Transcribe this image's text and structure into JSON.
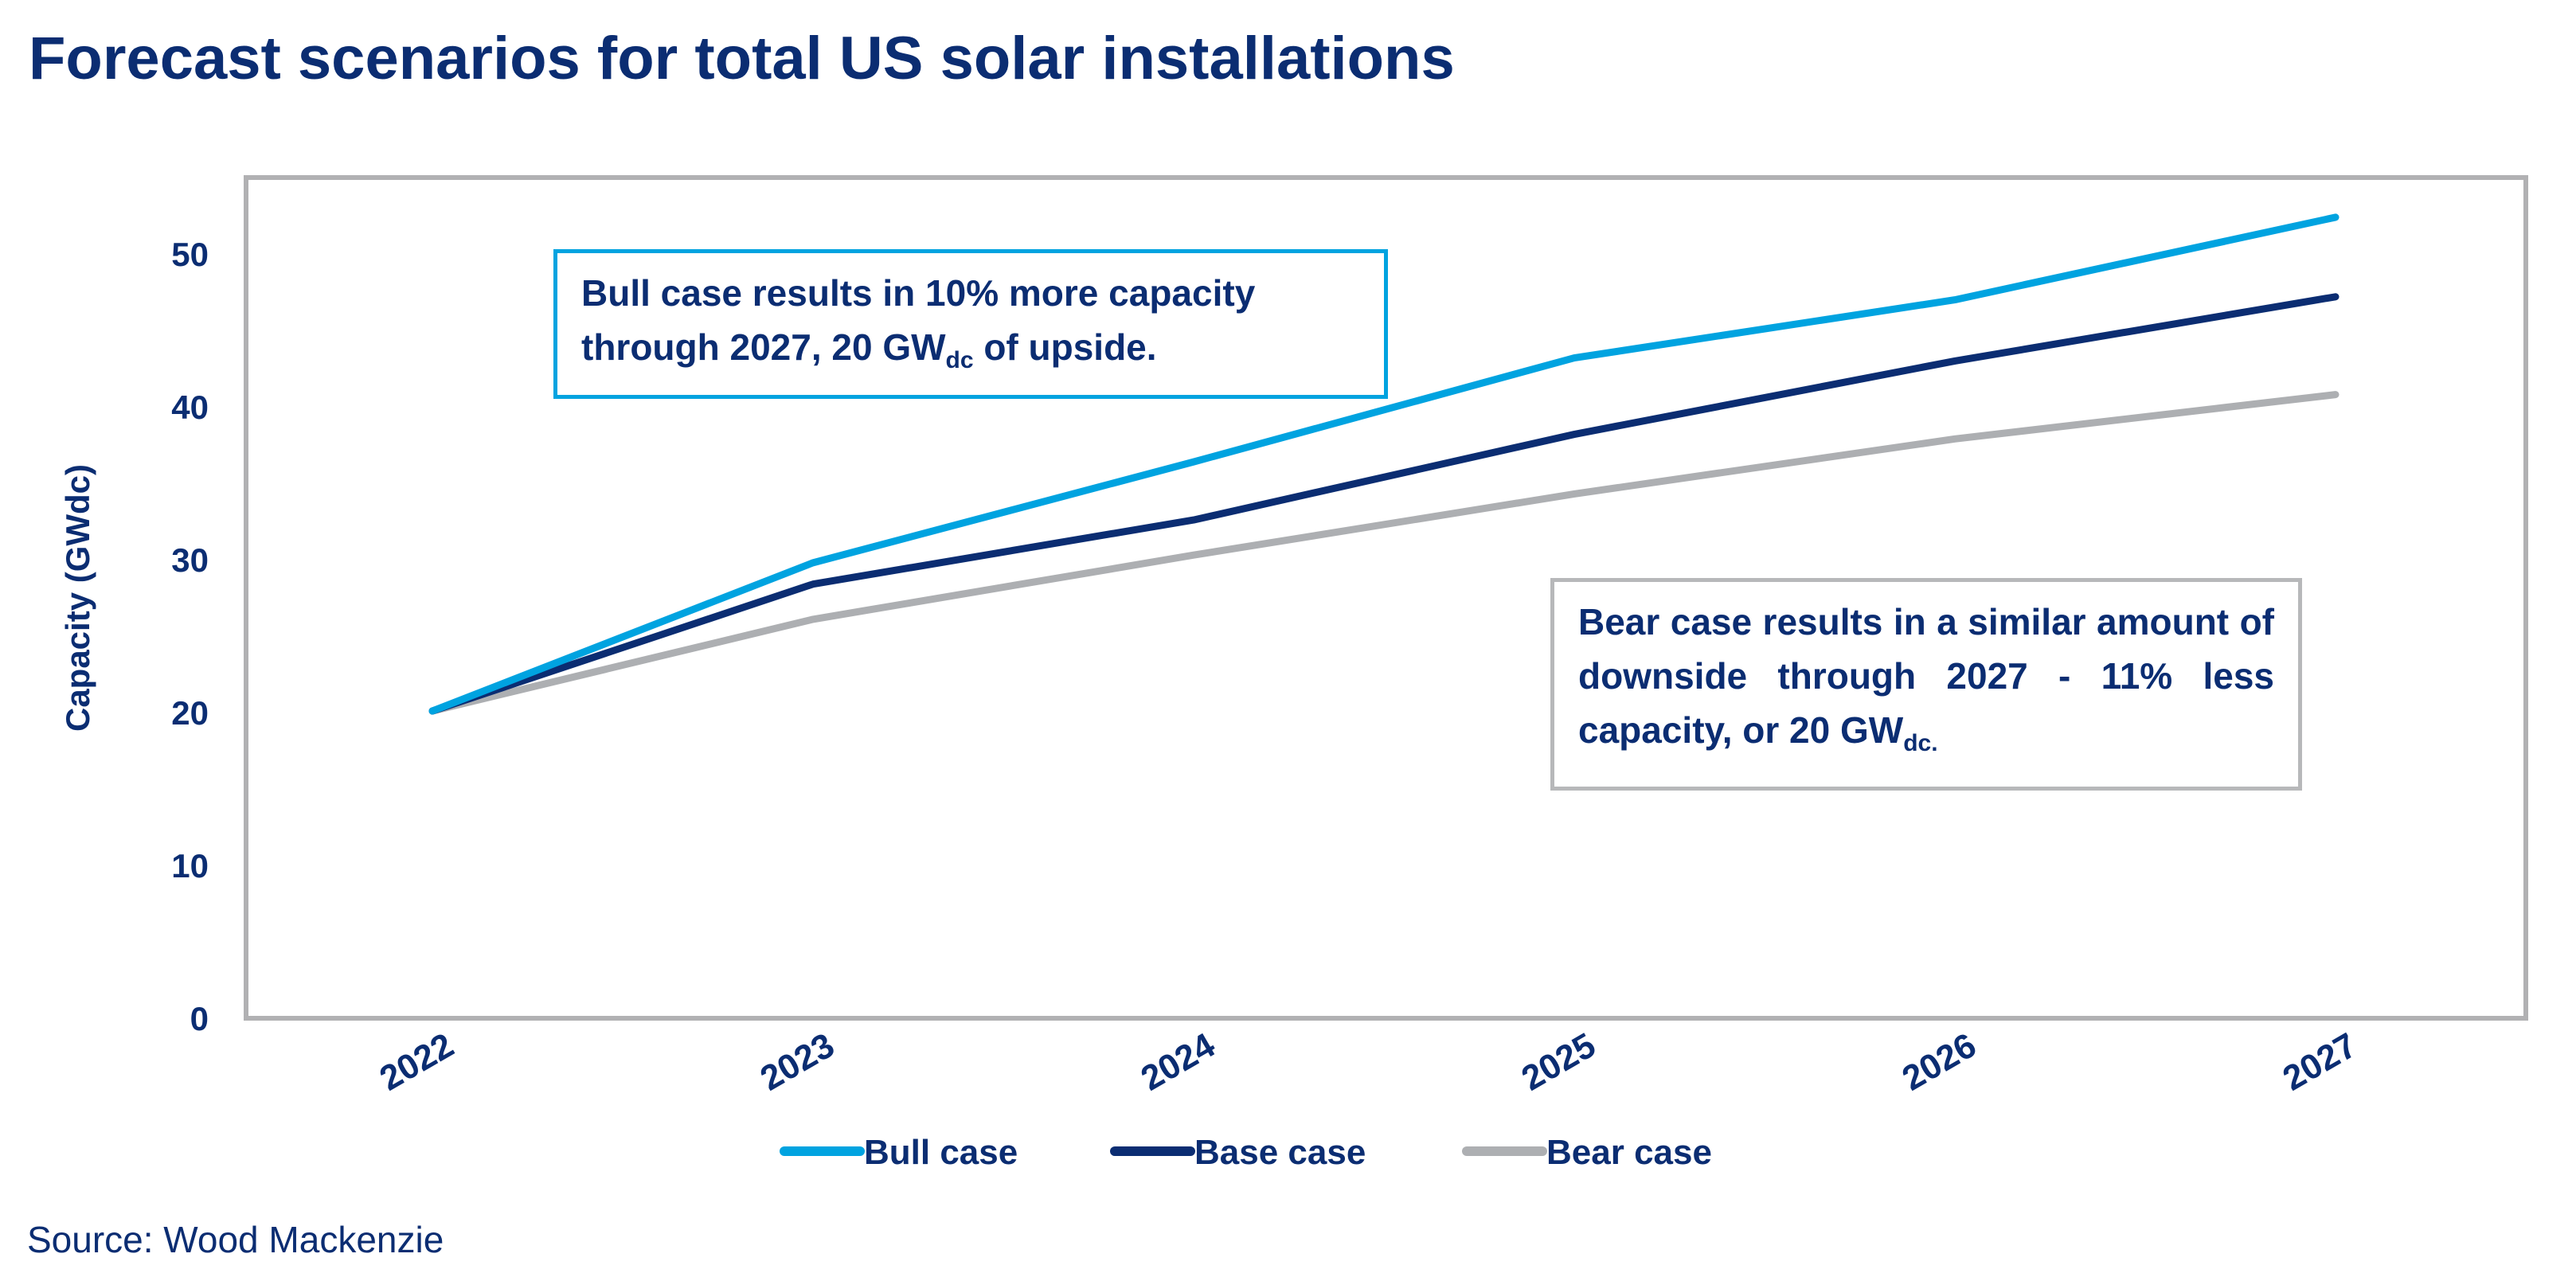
{
  "title": "Forecast scenarios for total US solar installations",
  "source": "Source: Wood Mackenzie",
  "annotations": {
    "bull": {
      "text": "Bull case results in 10% more capacity through 2027, 20 GW",
      "sub": "dc",
      "tail": " of upside."
    },
    "bear": {
      "text": "Bear case results in a similar amount of downside through 2027 - 11% less capacity, or 20 GW",
      "sub": "dc.",
      "tail": ""
    }
  },
  "chart_data": {
    "type": "line",
    "title": "Forecast scenarios for total US solar installations",
    "xlabel": "",
    "ylabel": "Capacity (GWdc)",
    "ylim": [
      0,
      55
    ],
    "yticks": [
      0,
      10,
      20,
      30,
      40,
      50
    ],
    "categories": [
      "2022",
      "2023",
      "2024",
      "2025",
      "2026",
      "2027"
    ],
    "grid": false,
    "legend": "bottom",
    "series": [
      {
        "name": "Bull case",
        "color": "#00a3e0",
        "values": [
          20.1,
          29.8,
          36.4,
          43.2,
          47.0,
          52.4
        ]
      },
      {
        "name": "Base case",
        "color": "#0b2d72",
        "values": [
          20.1,
          28.4,
          32.6,
          38.2,
          43.0,
          47.2
        ]
      },
      {
        "name": "Bear case",
        "color": "#adafb2",
        "values": [
          20.1,
          26.1,
          30.3,
          34.3,
          37.9,
          40.8
        ]
      }
    ]
  }
}
